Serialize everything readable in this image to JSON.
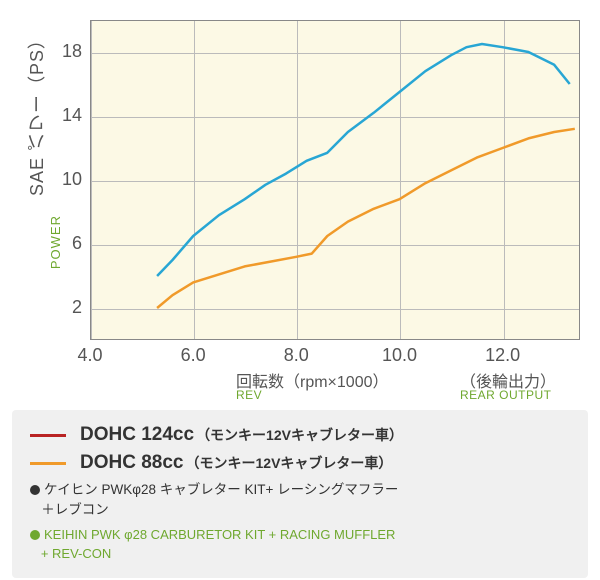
{
  "chart": {
    "type": "line",
    "background_color": "#fcf9e5",
    "border_color": "#888888",
    "grid_color": "#bbbbbb",
    "x": {
      "min": 4.0,
      "max": 13.5,
      "ticks": [
        4.0,
        6.0,
        8.0,
        10.0,
        12.0
      ],
      "tick_labels": [
        "4.0",
        "6.0",
        "8.0",
        "10.0",
        "12.0"
      ],
      "label_jp": "回転数（rpm×1000）",
      "label_jp2": "（後輪出力）",
      "label_en": "REV",
      "label_en2": "REAR OUTPUT",
      "label_fontsize": 16,
      "tick_fontsize": 18
    },
    "y": {
      "min": 0,
      "max": 20,
      "ticks": [
        2,
        6,
        10,
        14,
        18
      ],
      "tick_labels": [
        "2",
        "6",
        "10",
        "14",
        "18"
      ],
      "label_jp": "SAE パワー（PS）",
      "label_en": "POWER",
      "label_fontsize": 18,
      "tick_fontsize": 18
    },
    "series": [
      {
        "name": "blue",
        "color": "#28a6d4",
        "line_width": 2.5,
        "x": [
          5.3,
          5.6,
          6.0,
          6.5,
          7.0,
          7.4,
          7.8,
          8.2,
          8.6,
          9.0,
          9.5,
          10.0,
          10.5,
          11.0,
          11.3,
          11.6,
          12.0,
          12.5,
          13.0,
          13.3
        ],
        "y": [
          4.0,
          5.0,
          6.5,
          7.8,
          8.8,
          9.7,
          10.4,
          11.2,
          11.7,
          13.0,
          14.2,
          15.5,
          16.8,
          17.8,
          18.3,
          18.5,
          18.3,
          18.0,
          17.2,
          16.0
        ]
      },
      {
        "name": "orange",
        "color": "#f09a2a",
        "line_width": 2.5,
        "x": [
          5.3,
          5.6,
          6.0,
          6.5,
          7.0,
          7.5,
          8.0,
          8.3,
          8.6,
          9.0,
          9.5,
          10.0,
          10.5,
          11.0,
          11.5,
          12.0,
          12.5,
          13.0,
          13.4
        ],
        "y": [
          2.0,
          2.8,
          3.6,
          4.1,
          4.6,
          4.9,
          5.2,
          5.4,
          6.5,
          7.4,
          8.2,
          8.8,
          9.8,
          10.6,
          11.4,
          12.0,
          12.6,
          13.0,
          13.2
        ]
      }
    ]
  },
  "legend": {
    "bg_color": "#f0f0f0",
    "items": [
      {
        "color": "#b92323",
        "main": "DOHC 124cc",
        "sub": "（モンキー12Vキャブレター車）"
      },
      {
        "color": "#f09a2a",
        "main": "DOHC 88cc",
        "sub": "（モンキー12Vキャブレター車）"
      }
    ],
    "note_jp_bullet_color": "#333333",
    "note_jp_line1": "ケイヒン PWKφ28 キャブレター KIT+ レーシングマフラー",
    "note_jp_line2": "＋レブコン",
    "note_en_bullet_color": "#6fa82f",
    "note_en_line1": "KEIHIN PWK φ28 CARBURETOR KIT + RACING MUFFLER",
    "note_en_line2": "+ REV-CON"
  },
  "colors": {
    "text": "#555555",
    "text_dark": "#333333",
    "accent_green": "#6fa82f"
  }
}
